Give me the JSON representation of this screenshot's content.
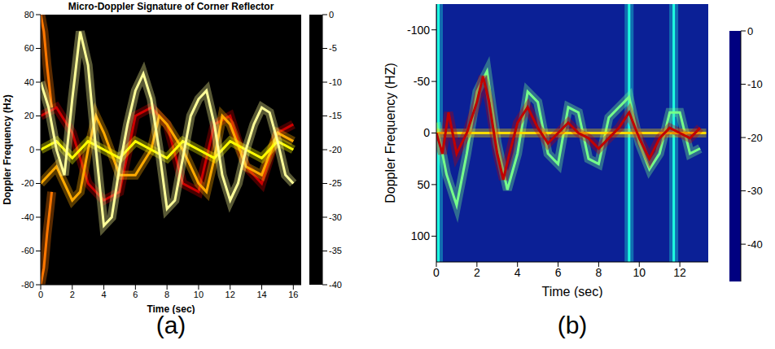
{
  "chart_data": [
    {
      "type": "line",
      "title": "Micro-Doppler Signature of Corner Reflector",
      "x_label": "Time (sec)",
      "y_label": "Doppler Frequency (Hz)",
      "panel_label": "(a)",
      "color": "hot",
      "xlim": [
        0,
        16.5
      ],
      "xticks": [
        0,
        2,
        4,
        6,
        8,
        10,
        12,
        14,
        16
      ],
      "ylim": [
        -80,
        80
      ],
      "yticks": [
        -80,
        -60,
        -40,
        -20,
        0,
        20,
        40,
        60,
        80
      ],
      "colorbar": {
        "range": [
          -40,
          0
        ],
        "ticks": [
          0,
          -5,
          -10,
          -15,
          -20,
          -25,
          -30,
          -35,
          -40
        ]
      },
      "series": [
        {
          "x": [
            0,
            1,
            2,
            3,
            4,
            5,
            6,
            7,
            8,
            9,
            10,
            11,
            12,
            13,
            14,
            15,
            16
          ],
          "values": [
            20,
            25,
            10,
            -20,
            -30,
            -25,
            20,
            25,
            15,
            -20,
            -25,
            15,
            20,
            -10,
            -20,
            10,
            15
          ],
          "level": -28
        },
        {
          "x": [
            0,
            0.2,
            0.4,
            0.7
          ],
          "values": [
            80,
            70,
            50,
            25
          ],
          "level": -18
        },
        {
          "x": [
            0,
            0.2,
            0.4,
            0.7
          ],
          "values": [
            -80,
            -70,
            -50,
            -25
          ],
          "level": -18
        },
        {
          "x": [
            0,
            1,
            2,
            2.5,
            3,
            3.5,
            4,
            5,
            6,
            7,
            7.5,
            8,
            9,
            10,
            10.5,
            11,
            11.5,
            12,
            13,
            14,
            15,
            16
          ],
          "values": [
            -20,
            -10,
            -30,
            -25,
            0,
            20,
            10,
            -15,
            -15,
            0,
            20,
            15,
            0,
            -20,
            -25,
            -5,
            20,
            15,
            -10,
            -15,
            10,
            5
          ],
          "level": -15
        },
        {
          "x": [
            0,
            1,
            2,
            3,
            4,
            5,
            6,
            7,
            8,
            9,
            10,
            11,
            12,
            13,
            14,
            15,
            16
          ],
          "values": [
            0,
            5,
            -5,
            5,
            0,
            -5,
            5,
            0,
            -5,
            5,
            0,
            -5,
            5,
            0,
            -5,
            5,
            0
          ],
          "level": -10
        },
        {
          "x": [
            0,
            0.5,
            1,
            1.5,
            2,
            2.5,
            3,
            3.5,
            4,
            4.5,
            5,
            5.5,
            6,
            6.5,
            7,
            7.5,
            8,
            8.5,
            9,
            9.5,
            10,
            10.5,
            11,
            11.5,
            12,
            12.5,
            13,
            13.5,
            14,
            14.5,
            15,
            15.5,
            16
          ],
          "values": [
            40,
            25,
            0,
            -15,
            30,
            70,
            50,
            0,
            -45,
            -40,
            -10,
            15,
            35,
            45,
            30,
            0,
            -35,
            -30,
            -5,
            20,
            30,
            35,
            15,
            -15,
            -30,
            -20,
            0,
            15,
            25,
            22,
            5,
            -15,
            -20
          ],
          "level": -4
        }
      ]
    },
    {
      "type": "line",
      "x_label": "Time (sec)",
      "y_label": "Doppler Frequency (HZ)",
      "panel_label": "(b)",
      "color": "jet",
      "xlim": [
        0,
        13.4
      ],
      "xticks": [
        0,
        2,
        4,
        6,
        8,
        10,
        12
      ],
      "ylim": [
        125,
        -125
      ],
      "yticks": [
        -100,
        -50,
        0,
        50,
        100
      ],
      "colorbar": {
        "range": [
          -47,
          0
        ],
        "ticks": [
          0,
          -10,
          -20,
          -30,
          -40
        ]
      },
      "series": [
        {
          "x": [
            0.1,
            0.1
          ],
          "values": [
            -125,
            125
          ],
          "level": -28
        },
        {
          "x": [
            9.5,
            9.5
          ],
          "values": [
            -125,
            125
          ],
          "level": -28
        },
        {
          "x": [
            11.7,
            11.7
          ],
          "values": [
            -125,
            125
          ],
          "level": -28
        },
        {
          "x": [
            0,
            0.5,
            1,
            1.5,
            2,
            2.5,
            3,
            3.5,
            4,
            4.5,
            5,
            5.5,
            6,
            6.5,
            7,
            7.5,
            8,
            8.5,
            9,
            9.5,
            10,
            10.5,
            11,
            11.5,
            12,
            12.5,
            13
          ],
          "values": [
            -10,
            40,
            70,
            20,
            -40,
            -60,
            10,
            55,
            20,
            -40,
            -30,
            20,
            30,
            -25,
            -20,
            25,
            30,
            -15,
            -25,
            -35,
            10,
            35,
            20,
            -20,
            -20,
            20,
            15
          ],
          "level": -24
        },
        {
          "x": [
            0,
            13.3
          ],
          "values": [
            0,
            0
          ],
          "level": -16
        },
        {
          "x": [
            0,
            0.3,
            0.6,
            1,
            1.5,
            2,
            2.3,
            2.6,
            3,
            3.3,
            3.6,
            4,
            4.5,
            5,
            5.5,
            6,
            6.5,
            7,
            7.5,
            8,
            8.5,
            9,
            9.5,
            10,
            10.5,
            11,
            11.5,
            12,
            12.5,
            13
          ],
          "values": [
            0,
            20,
            -20,
            20,
            0,
            -30,
            -55,
            -30,
            20,
            45,
            20,
            -10,
            -25,
            -5,
            10,
            0,
            -10,
            0,
            5,
            15,
            5,
            -5,
            -20,
            5,
            25,
            5,
            -5,
            0,
            5,
            -5
          ],
          "level": -3
        }
      ]
    }
  ]
}
